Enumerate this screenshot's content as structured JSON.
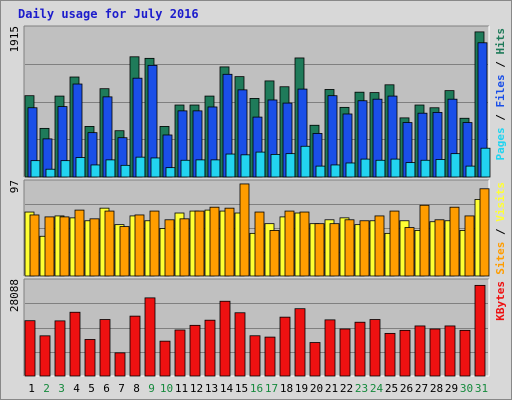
{
  "title": "Daily usage for July 2016",
  "chart_data": {
    "type": "bar",
    "title": "Daily usage for July 2016",
    "categories": [
      "1",
      "2",
      "3",
      "4",
      "5",
      "6",
      "7",
      "8",
      "9",
      "10",
      "11",
      "12",
      "13",
      "14",
      "15",
      "16",
      "17",
      "18",
      "19",
      "20",
      "21",
      "22",
      "23",
      "24",
      "25",
      "26",
      "27",
      "28",
      "29",
      "30",
      "31"
    ],
    "weekend_days": [
      "2",
      "3",
      "9",
      "10",
      "16",
      "17",
      "23",
      "24",
      "30",
      "31"
    ],
    "colors": {
      "hits": "#1f7b5a",
      "files": "#1a4fe8",
      "pages": "#22d4f0",
      "visits": "#ffff33",
      "sites": "#ff9d00",
      "kbytes": "#ee1111",
      "weekday_label": "#000000",
      "weekend_label": "#168a3d"
    },
    "panels": [
      {
        "name": "hits-files-pages",
        "ymax": 1915,
        "ymax_label": "1915",
        "legend": [
          "Pages",
          "Files",
          "Hits"
        ],
        "grid": true,
        "series": [
          {
            "name": "Hits",
            "values": [
              1045,
              625,
              1040,
              1285,
              650,
              1135,
              595,
              1545,
              1525,
              650,
              925,
              925,
              1040,
              1415,
              1290,
              1010,
              1235,
              1160,
              1530,
              665,
              1125,
              895,
              1090,
              1085,
              1185,
              760,
              925,
              890,
              1110,
              755,
              1865
            ]
          },
          {
            "name": "Files",
            "values": [
              890,
              490,
              905,
              1195,
              570,
              1030,
              505,
              1270,
              1435,
              540,
              850,
              850,
              900,
              1320,
              1120,
              770,
              990,
              950,
              1130,
              560,
              1045,
              810,
              980,
              1000,
              1040,
              700,
              820,
              830,
              1000,
              700,
              1725
            ]
          },
          {
            "name": "Pages",
            "values": [
              210,
              100,
              210,
              250,
              155,
              220,
              150,
              255,
              245,
              120,
              215,
              220,
              220,
              295,
              285,
              320,
              290,
              300,
              395,
              140,
              155,
              180,
              230,
              215,
              230,
              185,
              215,
              225,
              300,
              140,
              370
            ]
          }
        ]
      },
      {
        "name": "visits-sites",
        "ymax": 97,
        "ymax_label": "97",
        "legend": [
          "Sites",
          "Visits"
        ],
        "grid": true,
        "series": [
          {
            "name": "Visits",
            "values": [
              66,
              41,
              62,
              60,
              57,
              70,
              53,
              62,
              57,
              49,
              65,
              67,
              68,
              67,
              65,
              44,
              54,
              61,
              65,
              54,
              58,
              60,
              53,
              57,
              44,
              57,
              47,
              56,
              57,
              47,
              79
            ]
          },
          {
            "name": "Sites",
            "values": [
              63,
              61,
              61,
              68,
              59,
              67,
              51,
              63,
              67,
              58,
              59,
              67,
              71,
              70,
              95,
              66,
              47,
              67,
              66,
              54,
              54,
              58,
              57,
              62,
              67,
              50,
              73,
              58,
              71,
              62,
              90
            ]
          }
        ]
      },
      {
        "name": "kbytes",
        "ymax": 28088,
        "ymax_label": "28088",
        "legend": [
          "KBytes"
        ],
        "grid": true,
        "series": [
          {
            "name": "KBytes",
            "values": [
              16350,
              11880,
              16300,
              18850,
              10800,
              16700,
              6840,
              17700,
              23100,
              10300,
              13600,
              14980,
              16500,
              22100,
              18700,
              11900,
              11500,
              17400,
              19900,
              9900,
              16600,
              13900,
              15900,
              16700,
              12600,
              13500,
              14800,
              13900,
              14800,
              13500,
              26800
            ]
          }
        ]
      }
    ]
  }
}
